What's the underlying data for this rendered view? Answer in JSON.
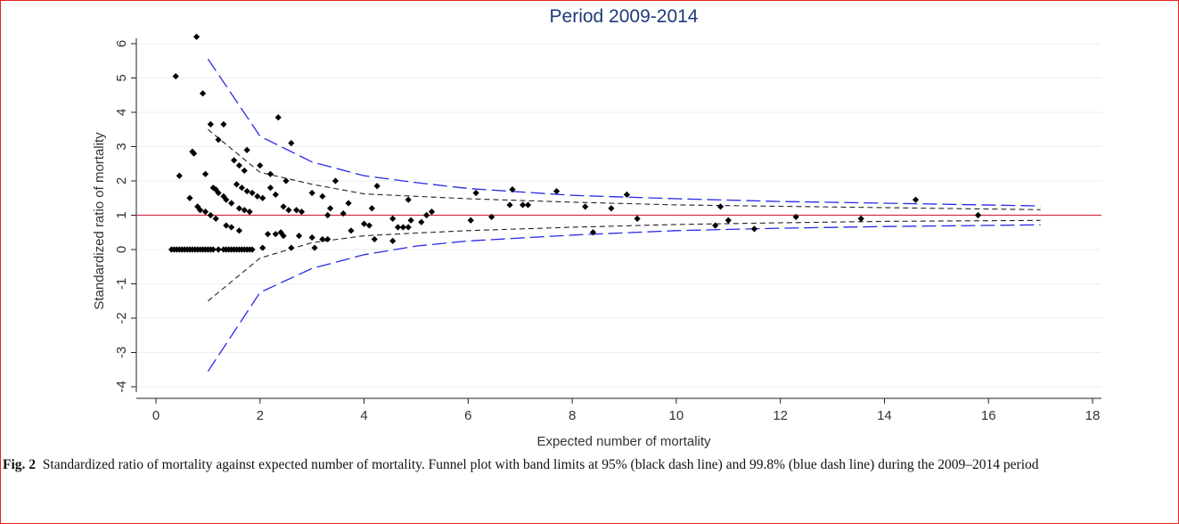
{
  "caption": {
    "label": "Fig. 2",
    "text": "Standardized ratio of mortality against expected number of mortality. Funnel plot with band limits at 95% (black dash line) and 99.8% (blue dash line) during the 2009–2014 period"
  },
  "chart_data": {
    "type": "scatter",
    "title": "Period 2009-2014",
    "xlabel": "Expected number of mortality",
    "ylabel": "Standardized ratio of mortality",
    "xlim": [
      0,
      18
    ],
    "ylim": [
      -4,
      6
    ],
    "xticks": [
      "0",
      "2",
      "4",
      "6",
      "8",
      "10",
      "12",
      "14",
      "16",
      "18"
    ],
    "yticks": [
      "-4",
      "-3",
      "-2",
      "-1",
      "0",
      "1",
      "2",
      "3",
      "4",
      "5",
      "6"
    ],
    "grid": true,
    "reference_line": {
      "y": 1,
      "color": "#d1304a"
    },
    "limit_color_95": "#222222",
    "limit_color_998": "#2a2ae6",
    "limits_95": {
      "x": [
        1.0,
        2.0,
        3.0,
        4.0,
        5.0,
        6.0,
        8.0,
        10.0,
        12.0,
        14.0,
        17.0
      ],
      "upper": [
        3.5,
        2.25,
        1.9,
        1.62,
        1.55,
        1.48,
        1.38,
        1.3,
        1.26,
        1.22,
        1.16
      ],
      "lower": [
        -1.5,
        -0.25,
        0.2,
        0.4,
        0.48,
        0.55,
        0.65,
        0.73,
        0.78,
        0.82,
        0.85
      ]
    },
    "limits_998": {
      "x": [
        1.0,
        2.0,
        3.0,
        4.0,
        5.0,
        6.0,
        8.0,
        10.0,
        12.0,
        14.0,
        17.0
      ],
      "upper": [
        5.55,
        3.3,
        2.55,
        2.15,
        1.95,
        1.78,
        1.58,
        1.48,
        1.4,
        1.35,
        1.27
      ],
      "lower": [
        -3.55,
        -1.25,
        -0.55,
        -0.15,
        0.1,
        0.25,
        0.42,
        0.55,
        0.62,
        0.67,
        0.72
      ]
    },
    "points": [
      [
        0.3,
        0
      ],
      [
        0.35,
        0
      ],
      [
        0.4,
        0
      ],
      [
        0.45,
        0
      ],
      [
        0.5,
        0
      ],
      [
        0.55,
        0
      ],
      [
        0.6,
        0
      ],
      [
        0.65,
        0
      ],
      [
        0.7,
        0
      ],
      [
        0.75,
        0
      ],
      [
        0.8,
        0
      ],
      [
        0.85,
        0
      ],
      [
        0.9,
        0
      ],
      [
        0.95,
        0
      ],
      [
        1.0,
        0
      ],
      [
        1.05,
        0
      ],
      [
        1.1,
        0
      ],
      [
        1.2,
        0
      ],
      [
        1.3,
        0
      ],
      [
        1.35,
        0
      ],
      [
        1.4,
        0
      ],
      [
        1.45,
        0
      ],
      [
        1.5,
        0
      ],
      [
        1.55,
        0
      ],
      [
        1.6,
        0
      ],
      [
        1.65,
        0
      ],
      [
        1.7,
        0
      ],
      [
        1.75,
        0
      ],
      [
        1.8,
        0
      ],
      [
        1.85,
        0
      ],
      [
        0.78,
        6.2
      ],
      [
        0.38,
        5.05
      ],
      [
        0.9,
        4.55
      ],
      [
        1.05,
        3.65
      ],
      [
        1.3,
        3.65
      ],
      [
        2.35,
        3.85
      ],
      [
        2.6,
        3.1
      ],
      [
        0.7,
        2.85
      ],
      [
        0.73,
        2.8
      ],
      [
        1.2,
        3.2
      ],
      [
        1.75,
        2.9
      ],
      [
        0.45,
        2.15
      ],
      [
        0.95,
        2.2
      ],
      [
        1.5,
        2.6
      ],
      [
        1.6,
        2.45
      ],
      [
        1.7,
        2.3
      ],
      [
        2.0,
        2.45
      ],
      [
        2.2,
        2.2
      ],
      [
        2.5,
        2.0
      ],
      [
        3.45,
        2.0
      ],
      [
        4.25,
        1.85
      ],
      [
        1.1,
        1.8
      ],
      [
        1.15,
        1.75
      ],
      [
        1.2,
        1.65
      ],
      [
        1.3,
        1.55
      ],
      [
        1.35,
        1.45
      ],
      [
        1.45,
        1.35
      ],
      [
        1.55,
        1.9
      ],
      [
        1.65,
        1.8
      ],
      [
        1.75,
        1.7
      ],
      [
        1.85,
        1.65
      ],
      [
        1.95,
        1.55
      ],
      [
        2.05,
        1.5
      ],
      [
        0.65,
        1.5
      ],
      [
        0.8,
        1.25
      ],
      [
        0.85,
        1.15
      ],
      [
        0.95,
        1.1
      ],
      [
        1.05,
        1.0
      ],
      [
        1.15,
        0.9
      ],
      [
        1.6,
        1.2
      ],
      [
        1.7,
        1.15
      ],
      [
        1.8,
        1.1
      ],
      [
        2.2,
        1.8
      ],
      [
        2.3,
        1.6
      ],
      [
        2.45,
        1.25
      ],
      [
        2.55,
        1.15
      ],
      [
        2.7,
        1.15
      ],
      [
        2.8,
        1.1
      ],
      [
        3.0,
        1.65
      ],
      [
        3.2,
        1.55
      ],
      [
        3.35,
        1.2
      ],
      [
        3.3,
        1.0
      ],
      [
        3.6,
        1.05
      ],
      [
        3.7,
        1.35
      ],
      [
        3.75,
        0.55
      ],
      [
        4.15,
        1.2
      ],
      [
        4.0,
        0.75
      ],
      [
        4.1,
        0.7
      ],
      [
        4.55,
        0.9
      ],
      [
        4.65,
        0.65
      ],
      [
        4.75,
        0.65
      ],
      [
        4.85,
        0.65
      ],
      [
        4.9,
        0.85
      ],
      [
        4.85,
        1.45
      ],
      [
        5.1,
        0.8
      ],
      [
        5.2,
        1.0
      ],
      [
        5.3,
        1.1
      ],
      [
        1.35,
        0.7
      ],
      [
        1.45,
        0.65
      ],
      [
        1.6,
        0.55
      ],
      [
        2.15,
        0.45
      ],
      [
        2.3,
        0.45
      ],
      [
        2.4,
        0.5
      ],
      [
        2.45,
        0.4
      ],
      [
        2.75,
        0.4
      ],
      [
        3.0,
        0.35
      ],
      [
        3.2,
        0.3
      ],
      [
        3.3,
        0.3
      ],
      [
        3.05,
        0.05
      ],
      [
        2.6,
        0.05
      ],
      [
        2.05,
        0.05
      ],
      [
        4.2,
        0.3
      ],
      [
        4.55,
        0.25
      ],
      [
        6.05,
        0.85
      ],
      [
        6.15,
        1.65
      ],
      [
        6.45,
        0.95
      ],
      [
        6.8,
        1.3
      ],
      [
        6.85,
        1.75
      ],
      [
        7.05,
        1.3
      ],
      [
        7.15,
        1.3
      ],
      [
        7.7,
        1.7
      ],
      [
        8.25,
        1.25
      ],
      [
        8.4,
        0.5
      ],
      [
        8.75,
        1.2
      ],
      [
        9.05,
        1.6
      ],
      [
        9.25,
        0.9
      ],
      [
        10.75,
        0.7
      ],
      [
        10.85,
        1.25
      ],
      [
        11.0,
        0.85
      ],
      [
        11.5,
        0.6
      ],
      [
        12.3,
        0.95
      ],
      [
        13.55,
        0.9
      ],
      [
        14.6,
        1.45
      ],
      [
        15.8,
        1.0
      ]
    ]
  }
}
